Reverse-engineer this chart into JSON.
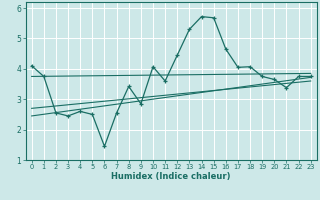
{
  "title": "",
  "xlabel": "Humidex (Indice chaleur)",
  "bg_color": "#cde8e8",
  "grid_color": "#ffffff",
  "line_color": "#1a6e64",
  "xlim": [
    -0.5,
    23.5
  ],
  "ylim": [
    1,
    6.2
  ],
  "xticks": [
    0,
    1,
    2,
    3,
    4,
    5,
    6,
    7,
    8,
    9,
    10,
    11,
    12,
    13,
    14,
    15,
    16,
    17,
    18,
    19,
    20,
    21,
    22,
    23
  ],
  "yticks": [
    1,
    2,
    3,
    4,
    5,
    6
  ],
  "line1_x": [
    0,
    1,
    2,
    3,
    4,
    5,
    6,
    7,
    8,
    9,
    10,
    11,
    12,
    13,
    14,
    15,
    16,
    17,
    18,
    19,
    20,
    21,
    22,
    23
  ],
  "line1_y": [
    4.1,
    3.75,
    2.55,
    2.45,
    2.6,
    2.5,
    1.45,
    2.55,
    3.42,
    2.85,
    4.07,
    3.6,
    4.45,
    5.3,
    5.72,
    5.68,
    4.65,
    4.05,
    4.07,
    3.75,
    3.65,
    3.38,
    3.75,
    3.75
  ],
  "line2_x": [
    0,
    23
  ],
  "line2_y": [
    3.75,
    3.85
  ],
  "line3_x": [
    0,
    23
  ],
  "line3_y": [
    2.7,
    3.6
  ],
  "line4_x": [
    0,
    23
  ],
  "line4_y": [
    2.45,
    3.72
  ]
}
